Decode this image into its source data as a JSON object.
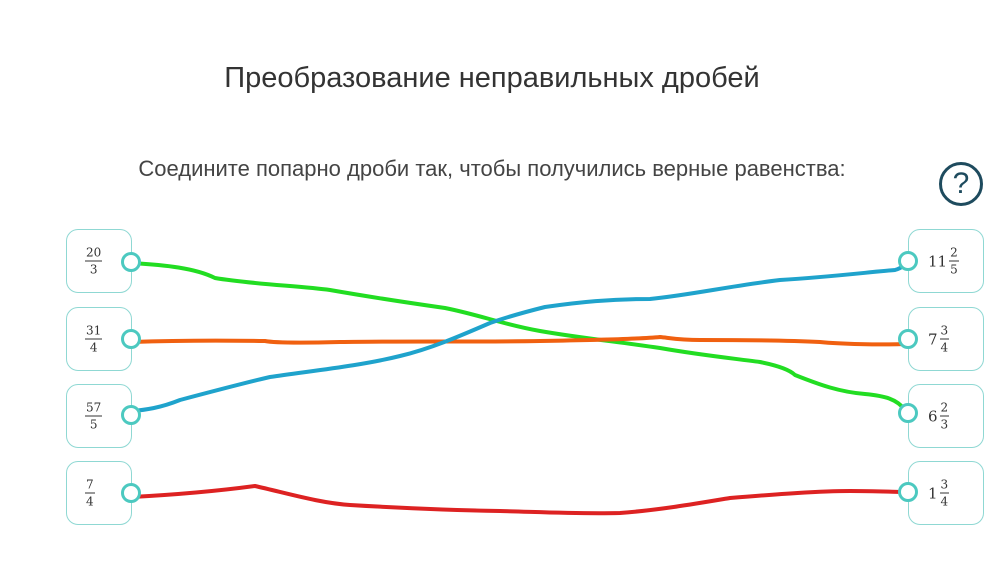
{
  "title": "Преобразование неправильных дробей",
  "instruction": "Соедините попарно дроби так, чтобы получились верные равенства:",
  "help_icon": "?",
  "colors": {
    "accent": "#4cc9c0",
    "card_border": "#8fd8d3",
    "green_line": "#22dd22",
    "orange_line": "#f06010",
    "blue_line": "#1fa3cc",
    "red_line": "#dd2222",
    "help": "#1e4b5e"
  },
  "left_items": [
    {
      "num": "20",
      "den": "3"
    },
    {
      "num": "31",
      "den": "4"
    },
    {
      "num": "57",
      "den": "5"
    },
    {
      "num": "7",
      "den": "4"
    }
  ],
  "right_items": [
    {
      "whole": "11",
      "num": "2",
      "den": "5"
    },
    {
      "whole": "7",
      "num": "3",
      "den": "4"
    },
    {
      "whole": "6",
      "num": "2",
      "den": "3"
    },
    {
      "whole": "1",
      "num": "3",
      "den": "4"
    }
  ],
  "connections": [
    {
      "from": 0,
      "to": 2,
      "color": "green_line"
    },
    {
      "from": 1,
      "to": 1,
      "color": "orange_line"
    },
    {
      "from": 2,
      "to": 0,
      "color": "blue_line"
    },
    {
      "from": 3,
      "to": 3,
      "color": "red_line"
    }
  ]
}
